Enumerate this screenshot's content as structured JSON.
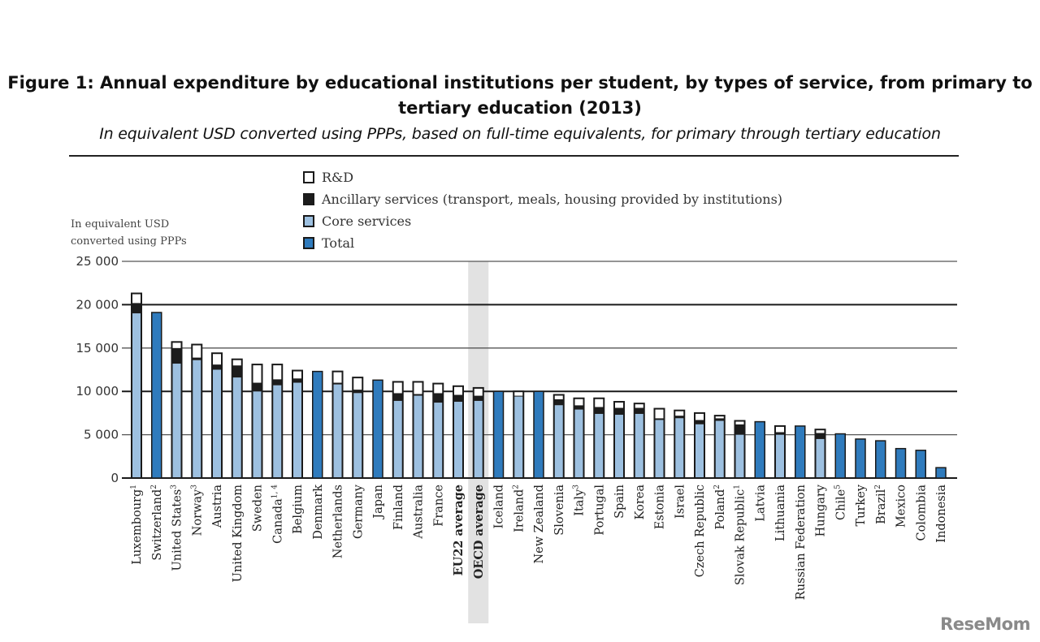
{
  "header": {
    "title_line1": "Figure 1: Annual expenditure by educational institutions per student, by types of service, from primary to",
    "title_line2": "tertiary education (2013)",
    "subtitle": "In equivalent USD converted using PPPs, based on full-time equivalents, for primary through tertiary education"
  },
  "brand": "ReseMom",
  "colors": {
    "rd": "#ffffff",
    "ancillary": "#1c1c1c",
    "core": "#9dc0e0",
    "total": "#2f7bbd",
    "outline": "#1a1a1a",
    "highlight": "#e2e2e2"
  },
  "chart_data": {
    "type": "bar",
    "stacked": true,
    "title": "Figure 1: Annual expenditure by educational institutions per student, by types of service, from primary to tertiary education (2013)",
    "subtitle": "In equivalent USD converted using PPPs, based on full-time equivalents, for primary through tertiary education",
    "ylabel": "In equivalent USD converted using PPPs",
    "ylabel_lines": [
      "In equivalent USD",
      "converted using PPPs"
    ],
    "xlabel": "",
    "ylim": [
      0,
      25000
    ],
    "yticks": [
      0,
      5000,
      10000,
      15000,
      20000,
      25000
    ],
    "ytick_labels": [
      "0",
      "5 000",
      "10 000",
      "15 000",
      "20 000",
      "25 000"
    ],
    "grid": true,
    "legend": {
      "placement": "top-center",
      "entries": [
        {
          "key": "rd",
          "label": "R&D"
        },
        {
          "key": "ancillary",
          "label": "Ancillary services (transport, meals, housing provided by institutions)"
        },
        {
          "key": "core",
          "label": "Core services"
        },
        {
          "key": "total",
          "label": "Total"
        }
      ]
    },
    "highlight_category": "OECD average",
    "categories": [
      {
        "name": "Luxembourg",
        "sup": "1",
        "core": 19000,
        "ancillary": 1200,
        "rd": 1100,
        "total": null
      },
      {
        "name": "Switzerland",
        "sup": "2",
        "core": null,
        "ancillary": null,
        "rd": null,
        "total": 19100
      },
      {
        "name": "United States",
        "sup": "3",
        "core": 13200,
        "ancillary": 1800,
        "rd": 700,
        "total": null
      },
      {
        "name": "Norway",
        "sup": "3",
        "core": 13600,
        "ancillary": 300,
        "rd": 1500,
        "total": null
      },
      {
        "name": "Austria",
        "sup": "",
        "core": 12500,
        "ancillary": 600,
        "rd": 1300,
        "total": null
      },
      {
        "name": "United Kingdom",
        "sup": "",
        "core": 11600,
        "ancillary": 1400,
        "rd": 700,
        "total": null
      },
      {
        "name": "Sweden",
        "sup": "",
        "core": 10000,
        "ancillary": 1000,
        "rd": 2100,
        "total": null
      },
      {
        "name": "Canada",
        "sup": "1, 4",
        "core": 10700,
        "ancillary": 700,
        "rd": 1700,
        "total": null
      },
      {
        "name": "Belgium",
        "sup": "",
        "core": 11000,
        "ancillary": 500,
        "rd": 900,
        "total": null
      },
      {
        "name": "Denmark",
        "sup": "",
        "core": null,
        "ancillary": null,
        "rd": null,
        "total": 12300
      },
      {
        "name": "Netherlands",
        "sup": "",
        "core": 10800,
        "ancillary": 200,
        "rd": 1300,
        "total": null
      },
      {
        "name": "Germany",
        "sup": "",
        "core": 9800,
        "ancillary": 400,
        "rd": 1400,
        "total": null
      },
      {
        "name": "Japan",
        "sup": "",
        "core": null,
        "ancillary": null,
        "rd": null,
        "total": 11300
      },
      {
        "name": "Finland",
        "sup": "",
        "core": 8900,
        "ancillary": 900,
        "rd": 1300,
        "total": null
      },
      {
        "name": "Australia",
        "sup": "",
        "core": 9500,
        "ancillary": 200,
        "rd": 1400,
        "total": null
      },
      {
        "name": "France",
        "sup": "",
        "core": 8700,
        "ancillary": 1100,
        "rd": 1100,
        "total": null
      },
      {
        "name": "EU22 average",
        "sup": "",
        "core": 8800,
        "ancillary": 800,
        "rd": 1000,
        "total": null,
        "bold": true
      },
      {
        "name": "OECD average",
        "sup": "",
        "core": 8900,
        "ancillary": 600,
        "rd": 900,
        "total": null,
        "bold": true
      },
      {
        "name": "Iceland",
        "sup": "",
        "core": null,
        "ancillary": null,
        "rd": null,
        "total": 10000
      },
      {
        "name": "Ireland",
        "sup": "2",
        "core": 9400,
        "ancillary": 100,
        "rd": 500,
        "total": null
      },
      {
        "name": "New Zealand",
        "sup": "",
        "core": null,
        "ancillary": null,
        "rd": null,
        "total": 10000
      },
      {
        "name": "Slovenia",
        "sup": "",
        "core": 8400,
        "ancillary": 700,
        "rd": 500,
        "total": null
      },
      {
        "name": "Italy",
        "sup": "3",
        "core": 7900,
        "ancillary": 500,
        "rd": 800,
        "total": null
      },
      {
        "name": "Portugal",
        "sup": "",
        "core": 7400,
        "ancillary": 800,
        "rd": 1000,
        "total": null
      },
      {
        "name": "Spain",
        "sup": "",
        "core": 7300,
        "ancillary": 800,
        "rd": 700,
        "total": null
      },
      {
        "name": "Korea",
        "sup": "",
        "core": 7400,
        "ancillary": 700,
        "rd": 500,
        "total": null
      },
      {
        "name": "Estonia",
        "sup": "",
        "core": 6700,
        "ancillary": 200,
        "rd": 1100,
        "total": null
      },
      {
        "name": "Israel",
        "sup": "",
        "core": 6900,
        "ancillary": 300,
        "rd": 600,
        "total": null
      },
      {
        "name": "Czech Republic",
        "sup": "",
        "core": 6200,
        "ancillary": 500,
        "rd": 800,
        "total": null
      },
      {
        "name": "Poland",
        "sup": "2",
        "core": 6600,
        "ancillary": 300,
        "rd": 300,
        "total": null
      },
      {
        "name": "Slovak Republic",
        "sup": "1",
        "core": 5000,
        "ancillary": 1200,
        "rd": 400,
        "total": null
      },
      {
        "name": "Latvia",
        "sup": "",
        "core": null,
        "ancillary": null,
        "rd": null,
        "total": 6500
      },
      {
        "name": "Lithuania",
        "sup": "",
        "core": 5000,
        "ancillary": 300,
        "rd": 700,
        "total": null
      },
      {
        "name": "Russian Federation",
        "sup": "",
        "core": null,
        "ancillary": null,
        "rd": null,
        "total": 6000
      },
      {
        "name": "Hungary",
        "sup": "",
        "core": 4500,
        "ancillary": 700,
        "rd": 400,
        "total": null
      },
      {
        "name": "Chile",
        "sup": "5",
        "core": null,
        "ancillary": null,
        "rd": null,
        "total": 5100
      },
      {
        "name": "Turkey",
        "sup": "",
        "core": null,
        "ancillary": null,
        "rd": null,
        "total": 4500
      },
      {
        "name": "Brazil",
        "sup": "2",
        "core": null,
        "ancillary": null,
        "rd": null,
        "total": 4300
      },
      {
        "name": "Mexico",
        "sup": "",
        "core": null,
        "ancillary": null,
        "rd": null,
        "total": 3400
      },
      {
        "name": "Colombia",
        "sup": "",
        "core": null,
        "ancillary": null,
        "rd": null,
        "total": 3200
      },
      {
        "name": "Indonesia",
        "sup": "",
        "core": null,
        "ancillary": null,
        "rd": null,
        "total": 1200
      }
    ]
  }
}
